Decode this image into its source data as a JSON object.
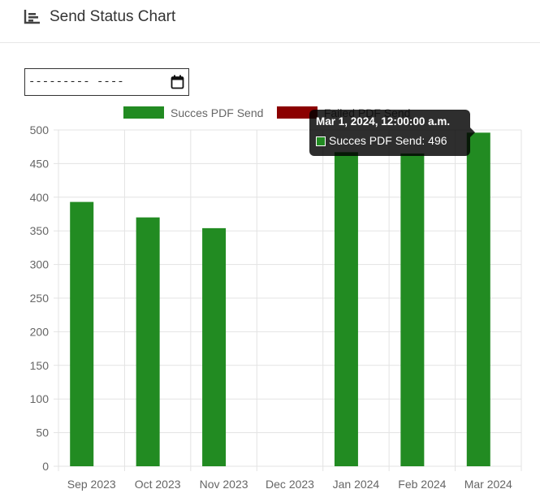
{
  "header": {
    "title": "Send Status Chart",
    "icon": "bar-chart-icon"
  },
  "date_filter": {
    "value": "--------- ----",
    "icon": "calendar-icon"
  },
  "tooltip": {
    "title": "Mar 1, 2024, 12:00:00 a.m.",
    "label": "Succes PDF Send: 496"
  },
  "chart_data": {
    "type": "bar",
    "categories": [
      "Sep 2023",
      "Oct 2023",
      "Nov 2023",
      "Dec 2023",
      "Jan 2024",
      "Feb 2024",
      "Mar 2024"
    ],
    "series": [
      {
        "name": "Succes PDF Send",
        "color": "#228B22",
        "values": [
          393,
          370,
          354,
          0,
          467,
          465,
          496
        ]
      },
      {
        "name": "Failed PDF Send",
        "color": "#8B0000",
        "values": [
          0,
          0,
          0,
          0,
          0,
          0,
          0
        ]
      }
    ],
    "y_ticks": [
      0,
      50,
      100,
      150,
      200,
      250,
      300,
      350,
      400,
      450,
      500
    ],
    "ylim": [
      0,
      500
    ],
    "grid": true,
    "legend_position": "top"
  }
}
